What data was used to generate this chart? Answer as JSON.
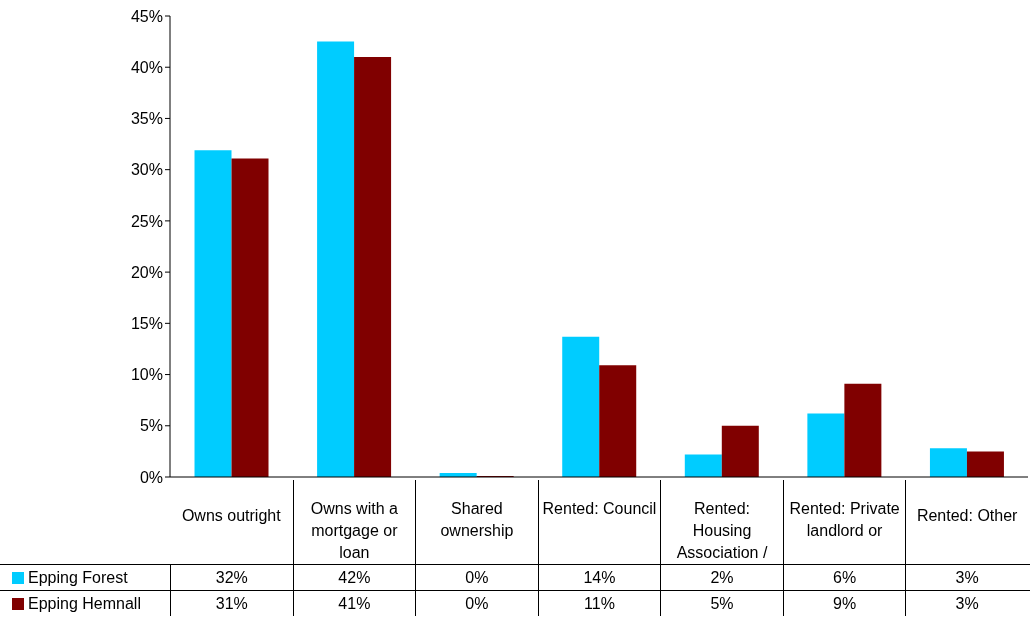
{
  "chart_data": {
    "type": "bar",
    "categories": [
      "Owns outright",
      "Owns with a mortgage or loan",
      "Shared ownership",
      "Rented: Council",
      "Rented: Housing Association /",
      "Rented: Private landlord or",
      "Rented: Other"
    ],
    "series": [
      {
        "name": "Epping Forest",
        "color": "#00ccff",
        "values": [
          31.9,
          42.5,
          0.4,
          13.7,
          2.2,
          6.2,
          2.8
        ],
        "value_labels": [
          "32%",
          "42%",
          "0%",
          "14%",
          "2%",
          "6%",
          "3%"
        ]
      },
      {
        "name": "Epping Hemnall",
        "color": "#800000",
        "values": [
          31.1,
          41.0,
          0.1,
          10.9,
          5.0,
          9.1,
          2.5
        ],
        "value_labels": [
          "31%",
          "41%",
          "0%",
          "11%",
          "5%",
          "9%",
          "3%"
        ]
      }
    ],
    "ylim": [
      0,
      45
    ],
    "yticks": [
      {
        "value": 0,
        "label": "0%"
      },
      {
        "value": 5,
        "label": "5%"
      },
      {
        "value": 10,
        "label": "10%"
      },
      {
        "value": 15,
        "label": "15%"
      },
      {
        "value": 20,
        "label": "20%"
      },
      {
        "value": 25,
        "label": "25%"
      },
      {
        "value": 30,
        "label": "30%"
      },
      {
        "value": 35,
        "label": "35%"
      },
      {
        "value": 40,
        "label": "40%"
      },
      {
        "value": 45,
        "label": "45%"
      }
    ],
    "grid": false,
    "legend": "bottom"
  }
}
